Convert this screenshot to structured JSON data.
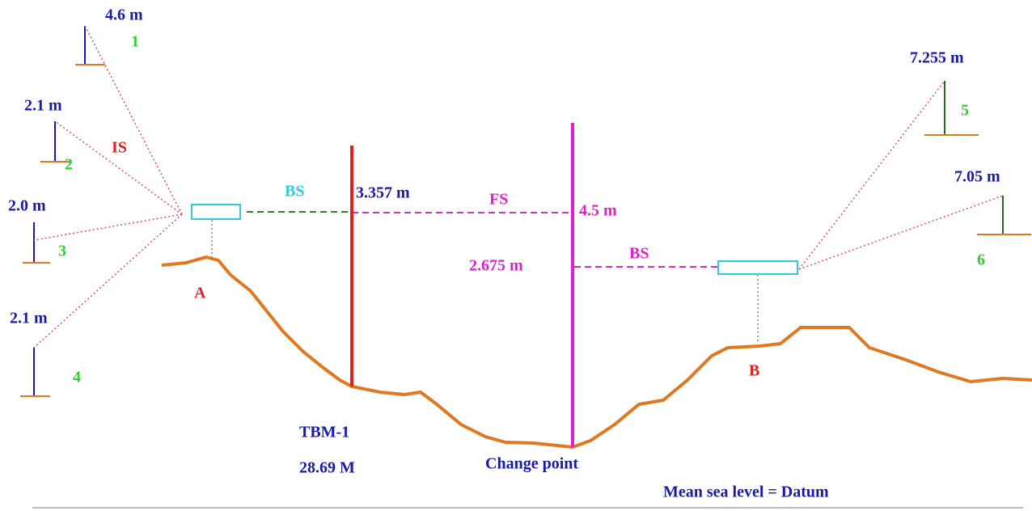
{
  "left_staves": [
    {
      "reading": "4.6 m",
      "number": "1"
    },
    {
      "reading": "2.1 m",
      "number": "2"
    },
    {
      "reading": "2.0 m",
      "number": "3"
    },
    {
      "reading": "2.1 m",
      "number": "4"
    }
  ],
  "right_staves": [
    {
      "reading": "7.255 m",
      "number": "5"
    },
    {
      "reading": "7.05 m",
      "number": "6"
    }
  ],
  "station_a": {
    "label": "A",
    "intermediate_sight": "IS",
    "back_sight": "BS"
  },
  "tbm": {
    "reading": "3.357 m",
    "name": "TBM-1",
    "level": "28.69 M"
  },
  "change_point": {
    "fore_sight": "FS",
    "fore_reading": "4.5 m",
    "back_reading": "2.675 m",
    "back_sight": "BS",
    "name": "Change point"
  },
  "station_b": {
    "label": "B"
  },
  "datum": "Mean sea level = Datum"
}
